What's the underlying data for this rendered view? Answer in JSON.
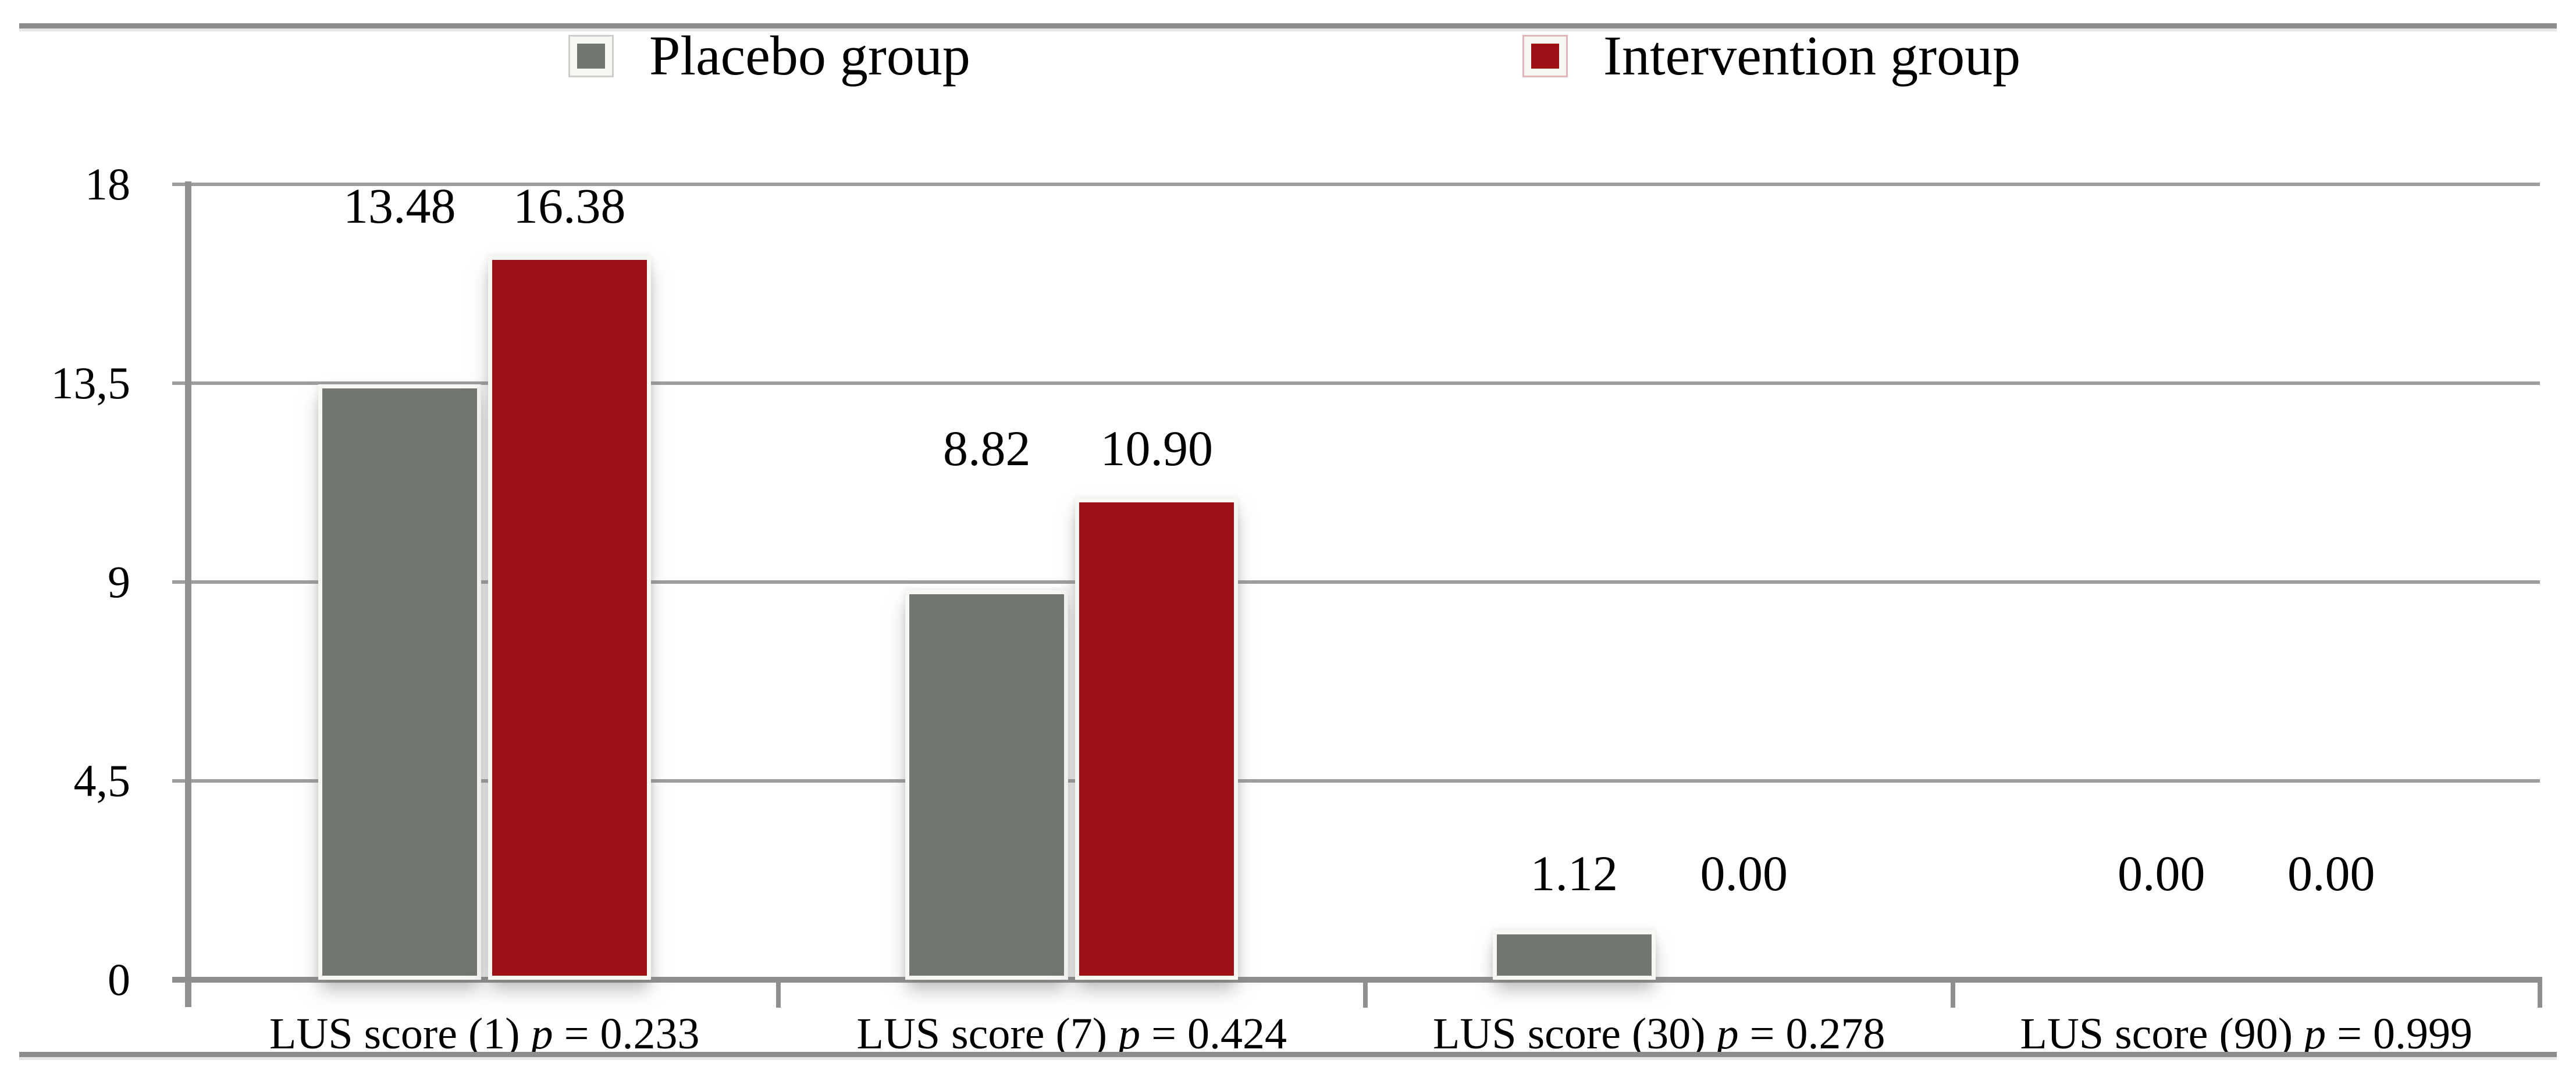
{
  "figure": {
    "type": "grouped-bar-chart",
    "background": "#ffffff"
  },
  "legend": {
    "position": "top",
    "items": [
      {
        "label": "Placebo group",
        "color": "#717671",
        "frame_tint": "#cbd0cb"
      },
      {
        "label": "Intervention group",
        "color": "#9d1016",
        "frame_tint": "#e4b6b8"
      }
    ]
  },
  "y_axis": {
    "tick_labels": [
      "18",
      "13,5",
      "9",
      "4,5",
      "0"
    ],
    "tick_values": [
      18,
      13.5,
      9,
      4.5,
      0
    ]
  },
  "chart_data": {
    "type": "bar",
    "title": "",
    "xlabel": "",
    "ylabel": "",
    "categories": [
      "LUS score (1)",
      "LUS score (7)",
      "LUS score (30)",
      "LUS score (90)"
    ],
    "category_p_labels": [
      {
        "p": "p",
        "rest": "= 0.233"
      },
      {
        "p": "p",
        "rest": "= 0.424"
      },
      {
        "p": "p",
        "rest": "= 0.278"
      },
      {
        "p": "p",
        "rest": "= 0.999"
      }
    ],
    "series": [
      {
        "name": "Placebo group",
        "color": "#717671",
        "values": [
          13.48,
          8.82,
          1.12,
          0
        ],
        "value_labels": [
          "13.48",
          "8.82",
          "1.12",
          "0.00"
        ]
      },
      {
        "name": "Intervention group",
        "color": "#9d1016",
        "values": [
          16.38,
          10.9,
          0,
          0
        ],
        "value_labels": [
          "16.38",
          "10.90",
          "0.00",
          "0.00"
        ]
      }
    ],
    "ylim": [
      0,
      18
    ],
    "yticks": [
      0,
      4.5,
      9,
      13.5,
      18
    ],
    "ytick_display": [
      "0",
      "4,5",
      "9",
      "13,5",
      "18"
    ],
    "grid": "horizontal",
    "legend_position": "top"
  },
  "colors": {
    "gridline": "#9e9e9e",
    "axis": "#909090",
    "border_rule": "#8d8d8d",
    "bar_edge": "#f7f7f4",
    "text": "#000000",
    "background": "#ffffff"
  }
}
